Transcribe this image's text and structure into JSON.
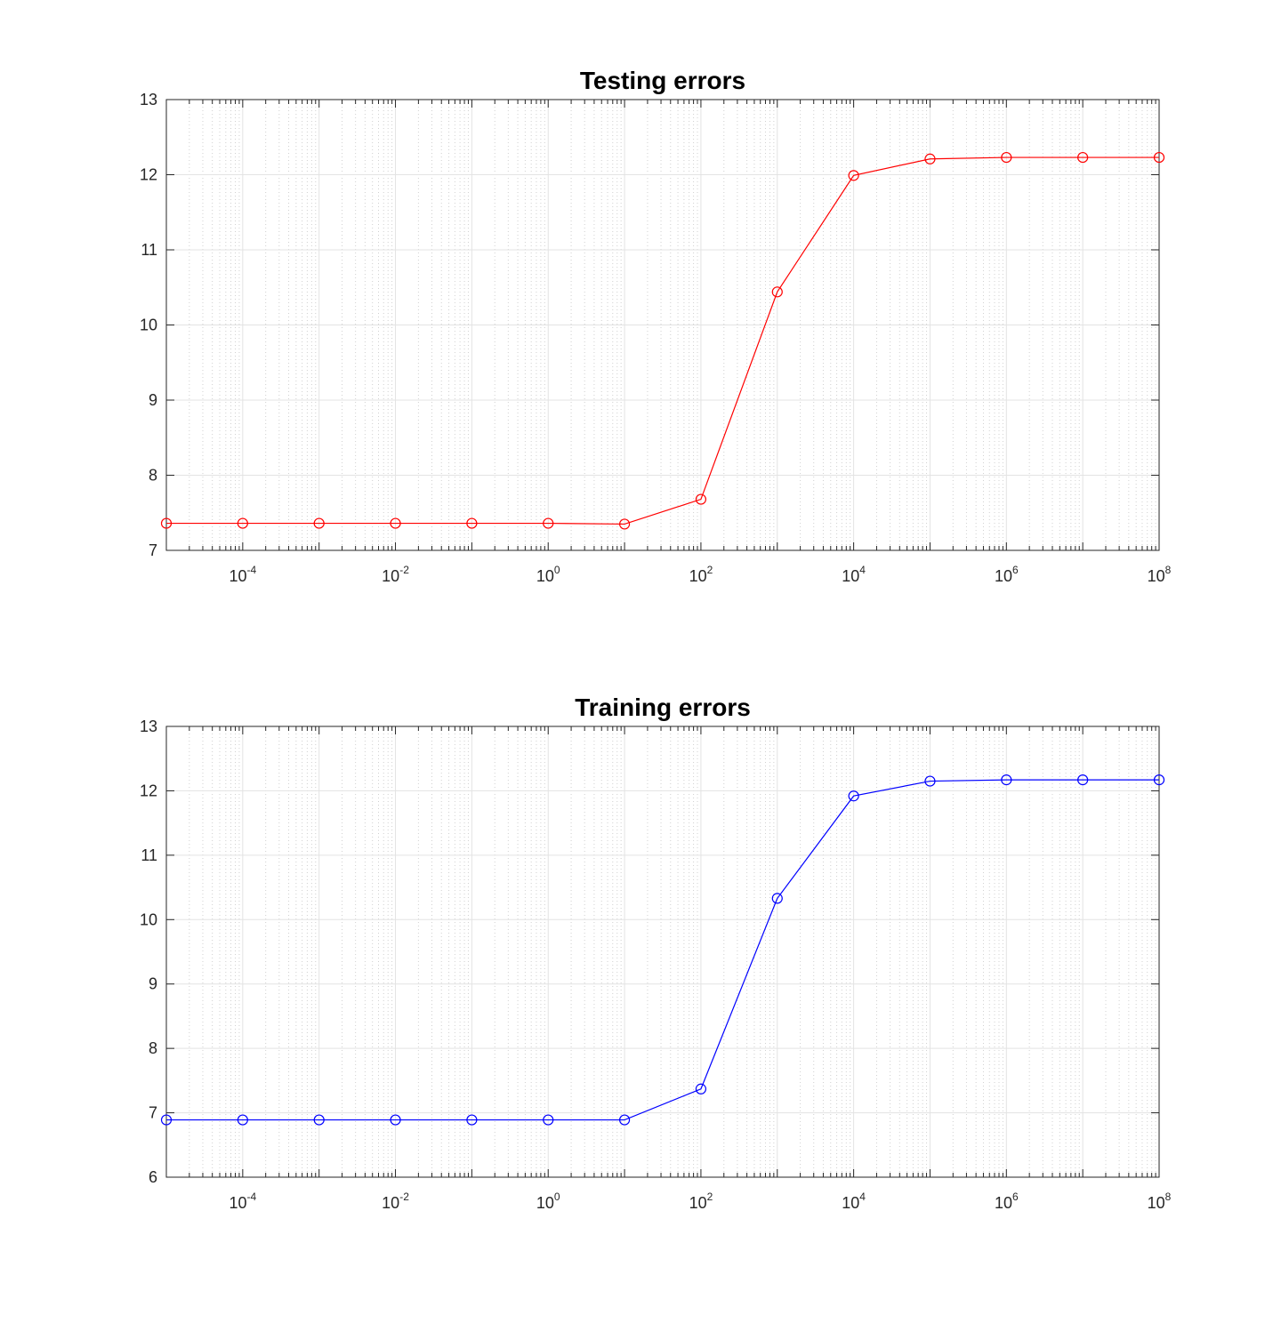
{
  "chart_data": [
    {
      "type": "line",
      "title": "Testing errors",
      "xscale": "log",
      "xlim": [
        1e-05,
        100000000.0
      ],
      "ylim": [
        7,
        13
      ],
      "yticks": [
        "7",
        "8",
        "9",
        "10",
        "11",
        "12",
        "13"
      ],
      "xticks": [
        {
          "base": "10",
          "exp": "-4",
          "value": 0.0001
        },
        {
          "base": "10",
          "exp": "-2",
          "value": 0.01
        },
        {
          "base": "10",
          "exp": "0",
          "value": 1
        },
        {
          "base": "10",
          "exp": "2",
          "value": 100.0
        },
        {
          "base": "10",
          "exp": "4",
          "value": 10000.0
        },
        {
          "base": "10",
          "exp": "6",
          "value": 1000000.0
        },
        {
          "base": "10",
          "exp": "8",
          "value": 100000000.0
        }
      ],
      "grid": true,
      "minor_grid": true,
      "series": [
        {
          "color": "#ff0000",
          "marker": "circle",
          "x": [
            1e-05,
            0.0001,
            0.001,
            0.01,
            0.1,
            1,
            10,
            100,
            1000,
            10000.0,
            100000.0,
            1000000.0,
            10000000.0,
            100000000.0
          ],
          "y": [
            7.36,
            7.36,
            7.36,
            7.36,
            7.36,
            7.36,
            7.35,
            7.68,
            10.44,
            11.99,
            12.21,
            12.23,
            12.23,
            12.23
          ]
        }
      ]
    },
    {
      "type": "line",
      "title": "Training errors",
      "xscale": "log",
      "xlim": [
        1e-05,
        100000000.0
      ],
      "ylim": [
        6,
        13
      ],
      "yticks": [
        "6",
        "7",
        "8",
        "9",
        "10",
        "11",
        "12",
        "13"
      ],
      "xticks": [
        {
          "base": "10",
          "exp": "-4",
          "value": 0.0001
        },
        {
          "base": "10",
          "exp": "-2",
          "value": 0.01
        },
        {
          "base": "10",
          "exp": "0",
          "value": 1
        },
        {
          "base": "10",
          "exp": "2",
          "value": 100.0
        },
        {
          "base": "10",
          "exp": "4",
          "value": 10000.0
        },
        {
          "base": "10",
          "exp": "6",
          "value": 1000000.0
        },
        {
          "base": "10",
          "exp": "8",
          "value": 100000000.0
        }
      ],
      "grid": true,
      "minor_grid": true,
      "series": [
        {
          "color": "#0000ff",
          "marker": "circle",
          "x": [
            1e-05,
            0.0001,
            0.001,
            0.01,
            0.1,
            1,
            10,
            100,
            1000,
            10000.0,
            100000.0,
            1000000.0,
            10000000.0,
            100000000.0
          ],
          "y": [
            6.89,
            6.89,
            6.89,
            6.89,
            6.89,
            6.89,
            6.89,
            7.37,
            10.33,
            11.92,
            12.15,
            12.17,
            12.17,
            12.17
          ]
        }
      ]
    }
  ]
}
